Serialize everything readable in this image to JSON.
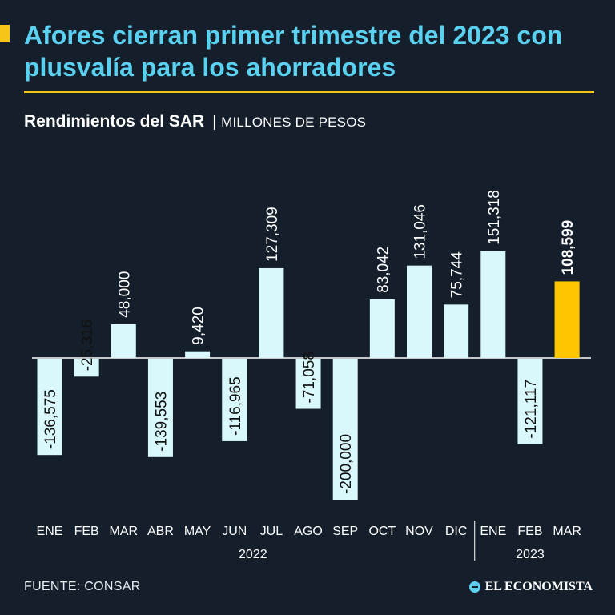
{
  "title": "Afores cierran primer trimestre del 2023 con plusvalía para los ahorradores",
  "subtitle_bold": "Rendimientos del SAR",
  "subtitle_sep": "|",
  "subtitle_unit": "MILLONES DE PESOS",
  "source": "FUENTE: CONSAR",
  "brand": "EL ECONOMISTA",
  "colors": {
    "background": "#141f2b",
    "title": "#5ad1f0",
    "accent": "#f5c518",
    "bar": "#d9f8fb",
    "highlight_bar": "#ffc600"
  },
  "chart_data": {
    "type": "bar",
    "categories": [
      "ENE",
      "FEB",
      "MAR",
      "ABR",
      "MAY",
      "JUN",
      "JUL",
      "AGO",
      "SEP",
      "OCT",
      "NOV",
      "DIC",
      "ENE",
      "FEB",
      "MAR"
    ],
    "values": [
      -136575,
      -25316,
      48000,
      -139553,
      9420,
      -116965,
      127309,
      -71058,
      -200000,
      83042,
      131046,
      75744,
      151318,
      -121117,
      108599
    ],
    "value_labels": [
      "-136,575",
      "-25,316",
      "48,000",
      "-139,553",
      "9,420",
      "-116,965",
      "127,309",
      "-71,058",
      "-200,000",
      "83,042",
      "131,046",
      "75,744",
      "151,318",
      "-121,117",
      "108,599"
    ],
    "highlight_index": 14,
    "groups": [
      {
        "label": "2022",
        "start": 0,
        "end": 11
      },
      {
        "label": "2023",
        "start": 12,
        "end": 14
      }
    ],
    "ylim": [
      -200000,
      151318
    ],
    "grid": false
  }
}
